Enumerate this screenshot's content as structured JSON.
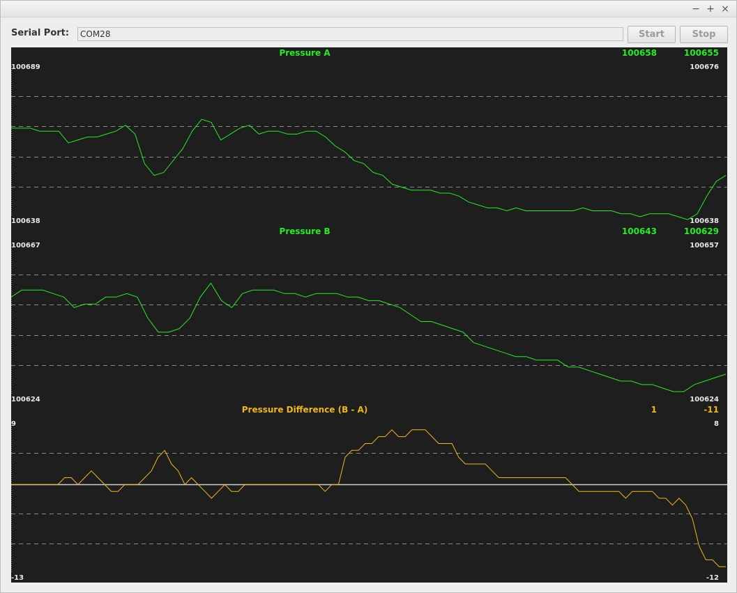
{
  "window": {
    "controls": {
      "minimize": "−",
      "maximize": "+",
      "close": "×"
    }
  },
  "toolbar": {
    "serial_label": "Serial Port:",
    "serial_value": "COM28",
    "start_label": "Start",
    "stop_label": "Stop"
  },
  "colors": {
    "background": "#1e1e1e",
    "grid": "#8a8a8a",
    "pressure": "#22ee22",
    "difference": "#f2b619",
    "axis_label": "#e8e8e8",
    "zero_line": "#d0d0d0"
  },
  "chart_data": [
    {
      "type": "line",
      "title": "Pressure A",
      "current_value": "100658",
      "right_value": "100655",
      "y_left_max": "100689",
      "y_left_min": "100638",
      "y_right_max": "100676",
      "y_right_min": "100638",
      "ylim": [
        100638,
        100689
      ],
      "grid": "dashed",
      "series": [
        {
          "color": "#22ee22",
          "values": [
            100668,
            100668,
            100668,
            100667,
            100667,
            100667,
            100663,
            100664,
            100665,
            100665,
            100666,
            100667,
            100669,
            100666,
            100656,
            100652,
            100653,
            100657,
            100661,
            100667,
            100671,
            100670,
            100664,
            100666,
            100668,
            100669,
            100666,
            100667,
            100667,
            100666,
            100666,
            100667,
            100667,
            100665,
            100662,
            100660,
            100657,
            100656,
            100653,
            100652,
            100649,
            100648,
            100647,
            100647,
            100647,
            100646,
            100646,
            100645,
            100643,
            100642,
            100641,
            100641,
            100640,
            100641,
            100640,
            100640,
            100640,
            100640,
            100640,
            100640,
            100641,
            100640,
            100640,
            100640,
            100639,
            100639,
            100638,
            100639,
            100639,
            100639,
            100638,
            100637,
            100639,
            100645,
            100650,
            100652
          ]
        }
      ]
    },
    {
      "type": "line",
      "title": "Pressure B",
      "current_value": "100643",
      "right_value": "100629",
      "y_left_max": "100667",
      "y_left_min": "100624",
      "y_right_max": "100657",
      "y_right_min": "100624",
      "ylim": [
        100624,
        100667
      ],
      "grid": "dashed",
      "series": [
        {
          "color": "#22ee22",
          "values": [
            100652,
            100654,
            100654,
            100654,
            100653,
            100652,
            100649,
            100650,
            100650,
            100652,
            100652,
            100653,
            100652,
            100646,
            100642,
            100642,
            100643,
            100646,
            100652,
            100656,
            100651,
            100649,
            100653,
            100654,
            100654,
            100654,
            100653,
            100653,
            100652,
            100653,
            100653,
            100653,
            100652,
            100652,
            100651,
            100651,
            100650,
            100649,
            100647,
            100645,
            100645,
            100644,
            100643,
            100642,
            100639,
            100638,
            100637,
            100636,
            100635,
            100635,
            100634,
            100634,
            100634,
            100632,
            100632,
            100631,
            100630,
            100629,
            100628,
            100628,
            100627,
            100627,
            100626,
            100625,
            100625,
            100627,
            100628,
            100629,
            100630
          ]
        }
      ]
    },
    {
      "type": "line",
      "title": "Pressure Difference (B - A)",
      "current_value": "1",
      "right_value": "-11",
      "y_left_max": "9",
      "y_left_min": "-13",
      "y_right_max": "8",
      "y_right_min": "-12",
      "ylim": [
        -13,
        9
      ],
      "zero_line": 0,
      "grid": "dashed",
      "series": [
        {
          "color": "#f2b619",
          "values": [
            0,
            0,
            0,
            0,
            0,
            0,
            0,
            0,
            1,
            1,
            0,
            1,
            2,
            1,
            0,
            -1,
            -1,
            0,
            0,
            0,
            1,
            2,
            4,
            5,
            3,
            2,
            0,
            1,
            0,
            -1,
            -2,
            -1,
            0,
            -1,
            -1,
            0,
            0,
            0,
            0,
            0,
            0,
            0,
            0,
            0,
            0,
            0,
            0,
            -1,
            0,
            0,
            4,
            5,
            5,
            6,
            6,
            7,
            7,
            8,
            7,
            7,
            8,
            8,
            8,
            7,
            6,
            6,
            6,
            4,
            3,
            3,
            3,
            3,
            2,
            1,
            1,
            1,
            1,
            1,
            1,
            1,
            1,
            1,
            1,
            1,
            0,
            -1,
            -1,
            -1,
            -1,
            -1,
            -1,
            -1,
            -2,
            -1,
            -1,
            -1,
            -1,
            -2,
            -2,
            -3,
            -2,
            -3,
            -5,
            -9,
            -11,
            -11,
            -12,
            -12
          ]
        }
      ]
    }
  ]
}
